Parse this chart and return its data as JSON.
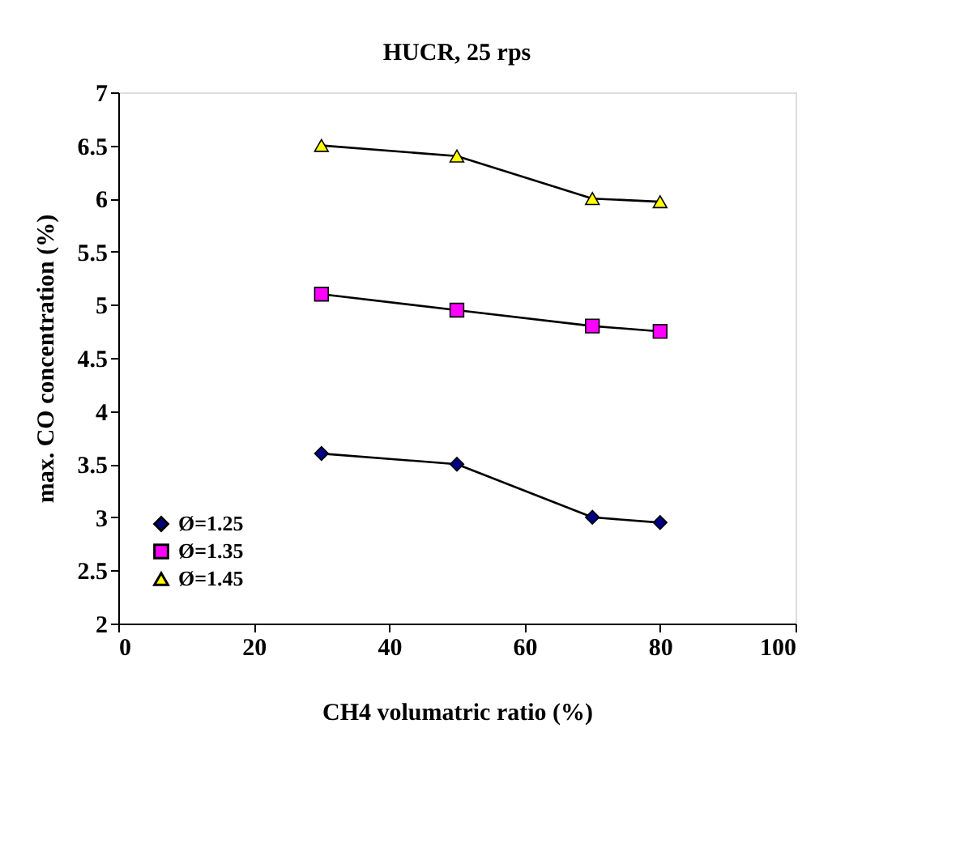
{
  "chart_data": {
    "type": "line",
    "title": "HUCR, 25 rps",
    "xlabel": "CH4 volumatric ratio (%)",
    "ylabel": "max. CO  concentration (%)",
    "x": [
      30,
      50,
      70,
      80
    ],
    "series": [
      {
        "name": "Ø=1.25",
        "color": "#000080",
        "marker": "diamond",
        "values": [
          3.6,
          3.5,
          3.0,
          2.95
        ]
      },
      {
        "name": "Ø=1.35",
        "color": "#ff00ff",
        "marker": "square",
        "values": [
          5.1,
          4.95,
          4.8,
          4.75
        ]
      },
      {
        "name": "Ø=1.45",
        "color": "#ffff00",
        "marker": "triangle",
        "values": [
          6.5,
          6.4,
          6.0,
          5.97
        ]
      }
    ],
    "xlim": [
      0,
      100
    ],
    "xticks": [
      0,
      20,
      40,
      60,
      80,
      100
    ],
    "ylim": [
      2,
      7
    ],
    "yticks": [
      2,
      2.5,
      3,
      3.5,
      4,
      4.5,
      5,
      5.5,
      6,
      6.5,
      7
    ],
    "grid": false,
    "legend": "bottom left",
    "line_style": "solid"
  }
}
